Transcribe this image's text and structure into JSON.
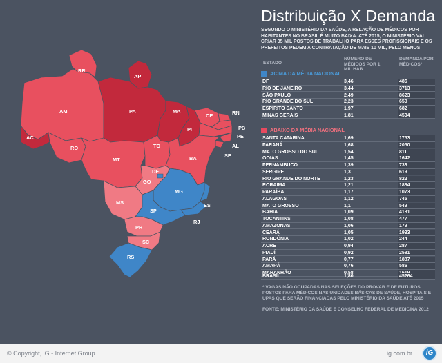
{
  "title": "Distribuição X Demanda",
  "intro": "Segundo o Ministério da Saúde, a relação de médicos por habitantes no Brasil é muito baixa. Até 2015, o Ministério vai criar 35 mil postos de trabalho para esses profissionais e os prefeitos pedem a contratação de mais 10 mil, pelo menos",
  "headers": {
    "estado": "Estado",
    "medicos": "Número de médicos por 1 mil hab.",
    "demanda": "Demanda por médicos*"
  },
  "above": {
    "label": "Acima da média nacional",
    "color": "#3f86c8",
    "rows": [
      {
        "estado": "DF",
        "medicos": "3,46",
        "demanda": "486"
      },
      {
        "estado": "Rio de Janeiro",
        "medicos": "3,44",
        "demanda": "3713"
      },
      {
        "estado": "São Paulo",
        "medicos": "2,49",
        "demanda": "8623"
      },
      {
        "estado": "Rio Grande do Sul",
        "medicos": "2,23",
        "demanda": "650"
      },
      {
        "estado": "Espírito Santo",
        "medicos": "1,97",
        "demanda": "682"
      },
      {
        "estado": "Minas Gerais",
        "medicos": "1,81",
        "demanda": "4504"
      }
    ]
  },
  "below": {
    "label": "Abaixo da média nacional",
    "color": "#e84a5f",
    "rows": [
      {
        "estado": "Santa Catarina",
        "medicos": "1,69",
        "demanda": "1753"
      },
      {
        "estado": "Paraná",
        "medicos": "1,68",
        "demanda": "2050"
      },
      {
        "estado": "Mato Grosso do Sul",
        "medicos": "1,54",
        "demanda": "811"
      },
      {
        "estado": "Goiás",
        "medicos": "1,45",
        "demanda": "1642"
      },
      {
        "estado": "Pernambuco",
        "medicos": "1,39",
        "demanda": "733"
      },
      {
        "estado": "Sergipe",
        "medicos": "1,3",
        "demanda": "619"
      },
      {
        "estado": "Rio Grande do Norte",
        "medicos": "1,23",
        "demanda": "822"
      },
      {
        "estado": "Roraima",
        "medicos": "1,21",
        "demanda": "1884"
      },
      {
        "estado": "Paraíba",
        "medicos": "1,17",
        "demanda": "1073"
      },
      {
        "estado": "Alagoas",
        "medicos": "1,12",
        "demanda": "745"
      },
      {
        "estado": "Mato Grosso",
        "medicos": "1,1",
        "demanda": "549"
      },
      {
        "estado": "Bahia",
        "medicos": "1,09",
        "demanda": "4131"
      },
      {
        "estado": "Tocantins",
        "medicos": "1,08",
        "demanda": "477"
      },
      {
        "estado": "Amazonas",
        "medicos": "1,06",
        "demanda": "179"
      },
      {
        "estado": "Ceará",
        "medicos": "1,05",
        "demanda": "1933"
      },
      {
        "estado": "Rondônia",
        "medicos": "1,02",
        "demanda": "244"
      },
      {
        "estado": "Acre",
        "medicos": "0,94",
        "demanda": "287"
      },
      {
        "estado": "Piauí",
        "medicos": "0,92",
        "demanda": "2581"
      },
      {
        "estado": "Pará",
        "medicos": "0,77",
        "demanda": "1887"
      },
      {
        "estado": "Amapá",
        "medicos": "0,76",
        "demanda": "586"
      },
      {
        "estado": "Maranhão",
        "medicos": "0,58",
        "demanda": "1619"
      }
    ]
  },
  "total": {
    "estado": "Brasil",
    "medicos": "1,80",
    "demanda": "45264"
  },
  "note": "* Vagas não ocupadas nas seleções do Provab e de futuros postos para médicos nas unidades básicas de saúde, hospitais e UPAs que serão financiadas pelo Ministério da Saúde até 2015",
  "source": "Fonte: Ministério da Saúde e Conselho Federal de Medicina 2012",
  "map_labels": {
    "RR": "RR",
    "AP": "AP",
    "AM": "AM",
    "PA": "PA",
    "MA": "MA",
    "CE": "CE",
    "RN": "RN",
    "PB": "PB",
    "PE": "PE",
    "PI": "PI",
    "AL": "AL",
    "SE": "SE",
    "AC": "AC",
    "RO": "RO",
    "TO": "TO",
    "BA": "BA",
    "MT": "MT",
    "DF": "DF",
    "GO": "GO",
    "MG": "MG",
    "ES": "ES",
    "MS": "MS",
    "SP": "SP",
    "RJ": "RJ",
    "PR": "PR",
    "SC": "SC",
    "RS": "RS"
  },
  "footer": {
    "copyright": "© Copyright, iG - Internet Group",
    "site": "ig.com.br",
    "logo": "iG"
  }
}
